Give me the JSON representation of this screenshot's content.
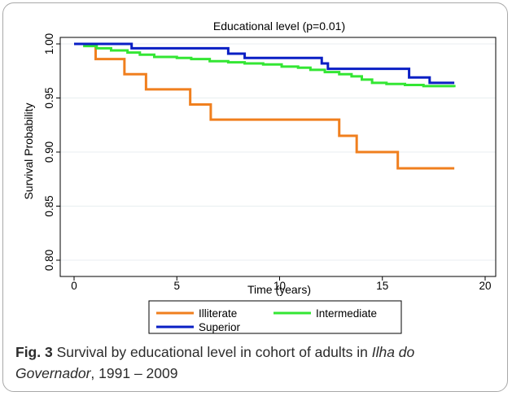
{
  "figure": {
    "caption_fig_label": "Fig. 3",
    "caption_text_1": " Survival by educational level in cohort of adults in ",
    "caption_italic": "Ilha do Governador",
    "caption_text_2": ", 1991 – 2009"
  },
  "chart_data": {
    "type": "line",
    "title": "Educational level (p=0.01)",
    "xlabel": "Time (years)",
    "ylabel": "Survival Probability",
    "xlim": [
      0,
      20
    ],
    "ylim": [
      0.8,
      1.0
    ],
    "xticks": [
      0,
      5,
      10,
      15,
      20
    ],
    "xtick_labels": [
      "0",
      "5",
      "10",
      "15",
      "20"
    ],
    "yticks": [
      0.8,
      0.85,
      0.9,
      0.95,
      1.0
    ],
    "ytick_labels": [
      "0.80",
      "0.85",
      "0.90",
      "0.95",
      "1.00"
    ],
    "grid": "horizontal",
    "legend_placement": "bottom",
    "series": [
      {
        "name": "Illiterate",
        "color": "#f07f1e",
        "step_points": [
          [
            0,
            1.0
          ],
          [
            1.05,
            0.986
          ],
          [
            2.45,
            0.972
          ],
          [
            3.5,
            0.958
          ],
          [
            5.65,
            0.944
          ],
          [
            6.65,
            0.93
          ],
          [
            12.9,
            0.915
          ],
          [
            13.75,
            0.9
          ],
          [
            15.75,
            0.885
          ],
          [
            18.5,
            0.885
          ]
        ]
      },
      {
        "name": "Intermediate",
        "color": "#33e633",
        "step_points": [
          [
            0,
            1.0
          ],
          [
            0.5,
            0.998
          ],
          [
            1.1,
            0.996
          ],
          [
            1.8,
            0.994
          ],
          [
            2.6,
            0.992
          ],
          [
            3.2,
            0.99
          ],
          [
            3.9,
            0.988
          ],
          [
            5.0,
            0.987
          ],
          [
            5.7,
            0.986
          ],
          [
            6.6,
            0.984
          ],
          [
            7.5,
            0.983
          ],
          [
            8.3,
            0.982
          ],
          [
            9.2,
            0.981
          ],
          [
            10.1,
            0.979
          ],
          [
            10.9,
            0.978
          ],
          [
            11.5,
            0.976
          ],
          [
            12.2,
            0.974
          ],
          [
            12.9,
            0.972
          ],
          [
            13.5,
            0.97
          ],
          [
            14.0,
            0.967
          ],
          [
            14.5,
            0.964
          ],
          [
            15.2,
            0.963
          ],
          [
            16.1,
            0.962
          ],
          [
            17.0,
            0.961
          ],
          [
            18.5,
            0.96
          ]
        ]
      },
      {
        "name": "Superior",
        "color": "#0a1fc4",
        "step_points": [
          [
            0,
            1.0
          ],
          [
            2.8,
            0.996
          ],
          [
            7.5,
            0.991
          ],
          [
            8.3,
            0.987
          ],
          [
            12.05,
            0.982
          ],
          [
            12.35,
            0.977
          ],
          [
            16.3,
            0.969
          ],
          [
            17.3,
            0.964
          ],
          [
            18.5,
            0.964
          ]
        ]
      }
    ]
  }
}
